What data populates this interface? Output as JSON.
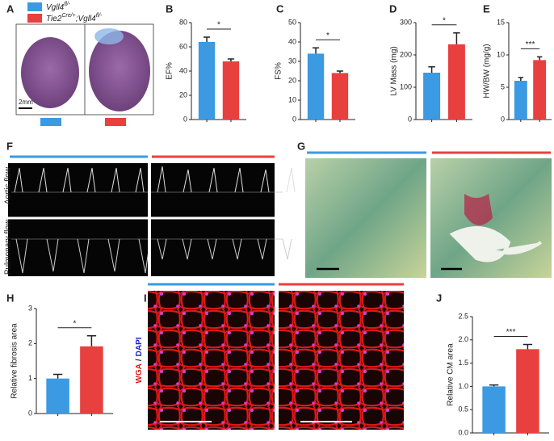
{
  "panel_labels": [
    "A",
    "F",
    "G",
    "I"
  ],
  "legend": [
    {
      "color": "#3b9ae1",
      "parts": [
        "Vgll4",
        "fl/-"
      ]
    },
    {
      "color": "#e8403f",
      "parts": [
        "Tie2",
        "Cre/+",
        ";Vgll4",
        "fl/-"
      ]
    }
  ],
  "scale_label": "2mm",
  "flow_labels": [
    "Aortic flow",
    "Pulmonary flow"
  ],
  "stain_labels": [
    "WGA",
    "/",
    "DAPI"
  ],
  "chart_data": [
    {
      "type": "bar",
      "label": "B",
      "ylabel": "EF%",
      "categories": [
        null,
        null
      ],
      "values": [
        64,
        48
      ],
      "errors": [
        4,
        2
      ],
      "colors": [
        "#3b9ae1",
        "#e8403f"
      ],
      "ylim": [
        0,
        80
      ],
      "yticks": [
        0,
        20,
        40,
        60,
        80
      ],
      "significance": "*"
    },
    {
      "type": "bar",
      "label": "C",
      "ylabel": "FS%",
      "categories": [
        null,
        null
      ],
      "values": [
        34,
        24
      ],
      "errors": [
        3,
        1
      ],
      "colors": [
        "#3b9ae1",
        "#e8403f"
      ],
      "ylim": [
        0,
        50
      ],
      "yticks": [
        0,
        10,
        20,
        30,
        40,
        50
      ],
      "significance": "*"
    },
    {
      "type": "bar",
      "label": "D",
      "ylabel": "LV Mass (mg)",
      "categories": [
        null,
        null
      ],
      "values": [
        145,
        233
      ],
      "errors": [
        18,
        35
      ],
      "colors": [
        "#3b9ae1",
        "#e8403f"
      ],
      "ylim": [
        0,
        300
      ],
      "yticks": [
        0,
        100,
        200,
        300
      ],
      "significance": "*"
    },
    {
      "type": "bar",
      "label": "E",
      "ylabel": "HW/BW (mg/g)",
      "categories": [
        null,
        null
      ],
      "values": [
        6,
        9.2
      ],
      "errors": [
        0.5,
        0.5
      ],
      "colors": [
        "#3b9ae1",
        "#e8403f"
      ],
      "ylim": [
        0,
        15
      ],
      "yticks": [
        0,
        5,
        10,
        15
      ],
      "significance": "***"
    },
    {
      "type": "bar",
      "label": "H",
      "ylabel": "Relative fibrosis area",
      "categories": [
        null,
        null
      ],
      "values": [
        1.0,
        1.92
      ],
      "errors": [
        0.12,
        0.3
      ],
      "colors": [
        "#3b9ae1",
        "#e8403f"
      ],
      "ylim": [
        0,
        3
      ],
      "yticks": [
        0,
        1,
        2,
        3
      ],
      "significance": "*"
    },
    {
      "type": "bar",
      "label": "J",
      "ylabel": "Relative CM area",
      "categories": [
        null,
        null
      ],
      "values": [
        1.0,
        1.8
      ],
      "errors": [
        0.03,
        0.1
      ],
      "colors": [
        "#3b9ae1",
        "#e8403f"
      ],
      "ylim": [
        0,
        2.5
      ],
      "yticks": [
        {
          "value": 0,
          "label": "0.0"
        },
        0.5,
        {
          "value": 1,
          "label": "1.0"
        },
        1.5,
        {
          "value": 2,
          "label": "2.0"
        },
        2.5
      ],
      "significance": "***"
    }
  ]
}
